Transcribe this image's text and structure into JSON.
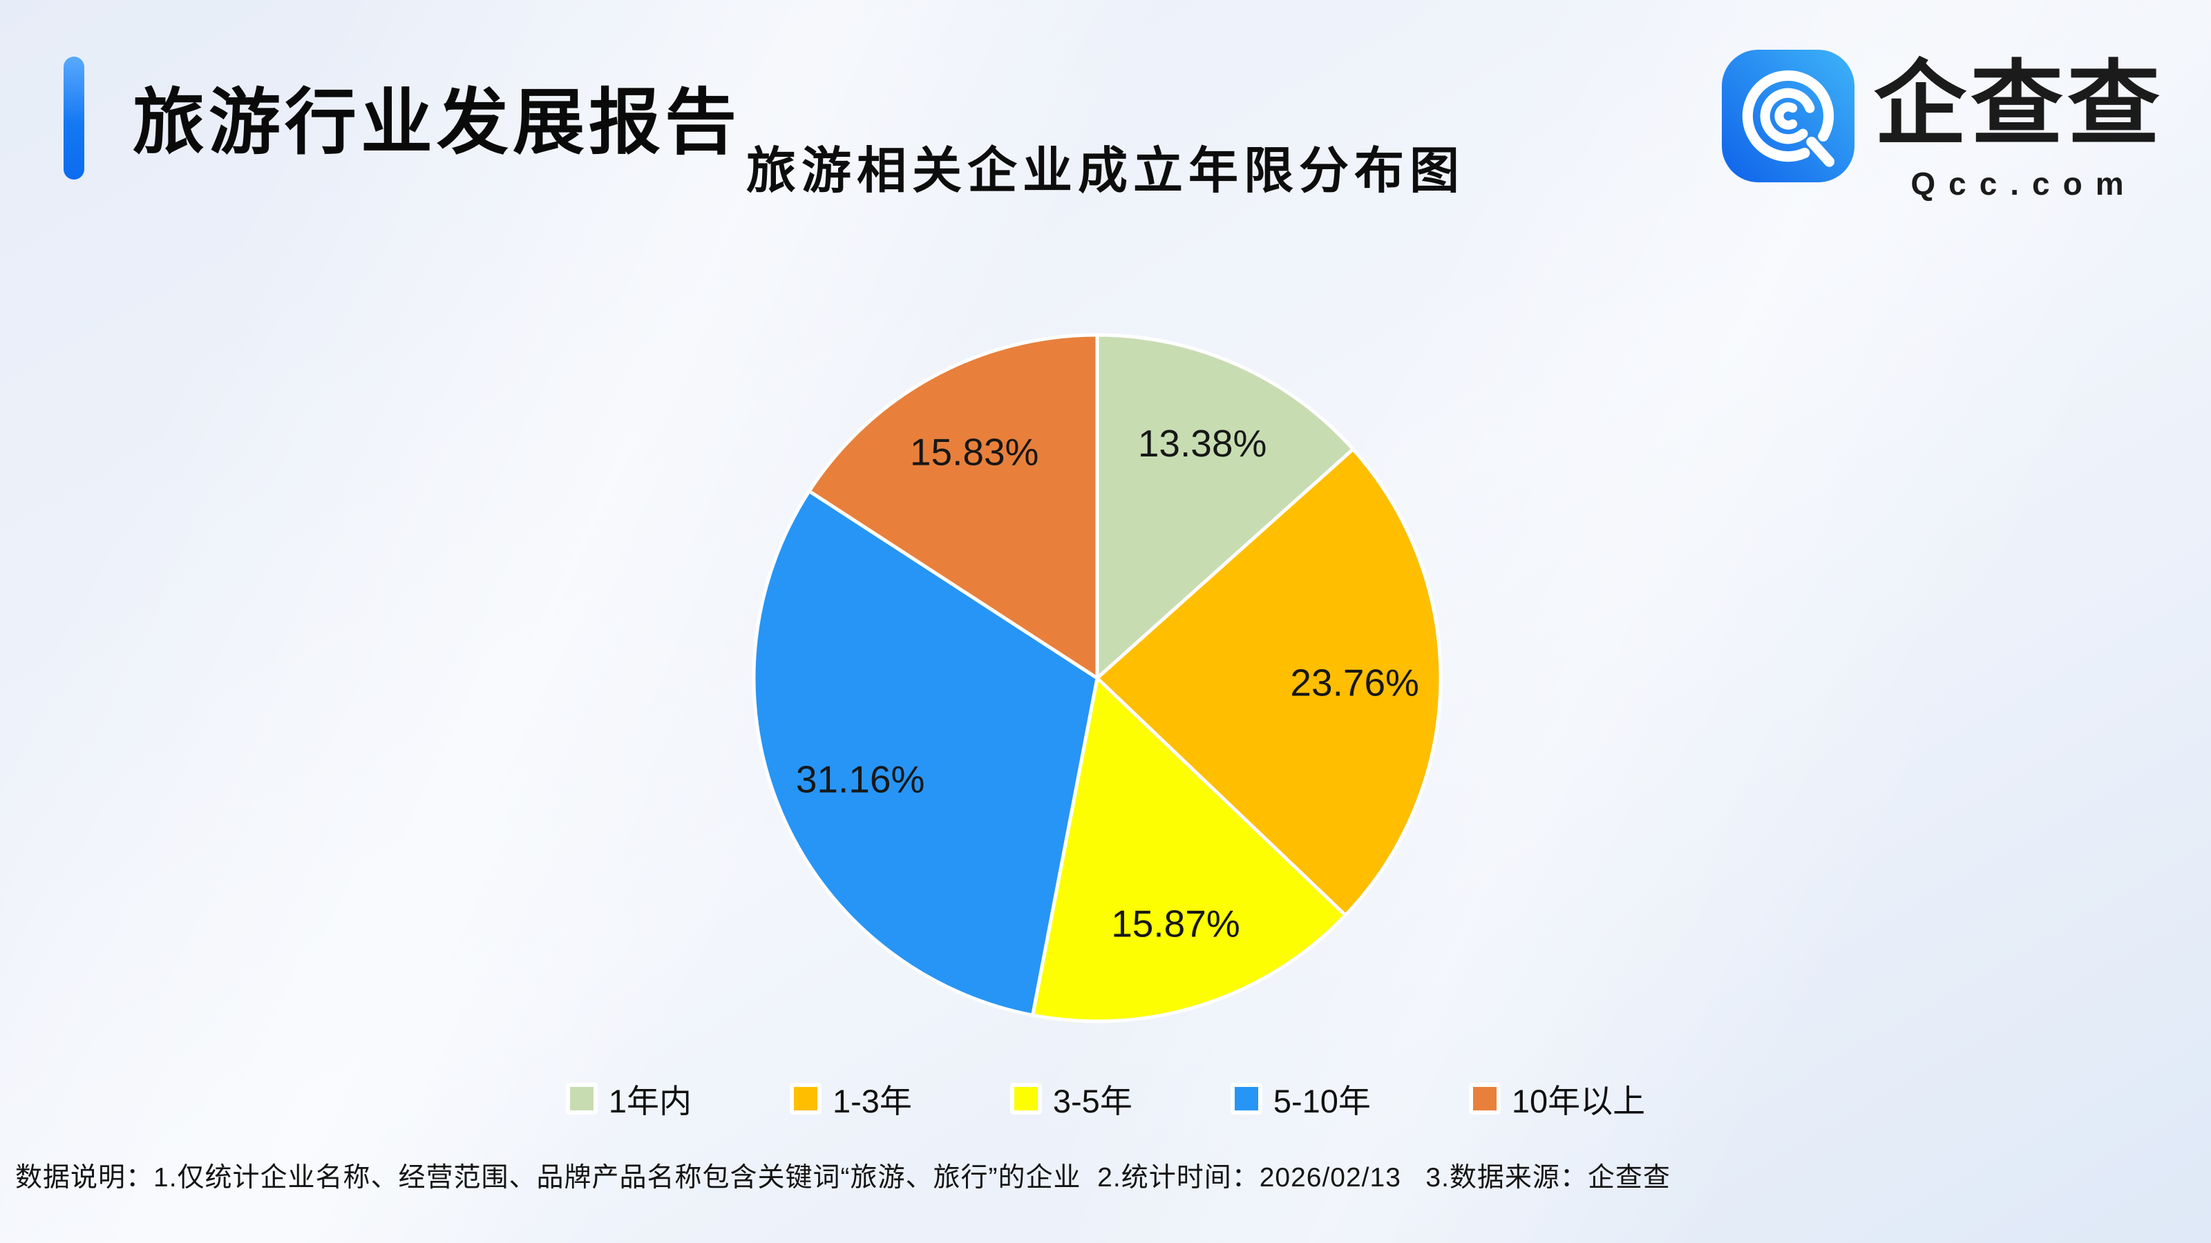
{
  "header": {
    "title": "旅游行业发展报告"
  },
  "logo": {
    "name": "企查查",
    "domain": "Qcc.com",
    "brand_blue": "#1478f2"
  },
  "chart_data": {
    "type": "pie",
    "title": "旅游相关企业成立年限分布图",
    "unit": "percent",
    "start_angle": "12-oclock",
    "direction": "clockwise",
    "labels_position": "inside",
    "legend_position": "bottom",
    "slices": [
      {
        "label": "1年内",
        "value": 13.38,
        "display": "13.38%",
        "color": "#c8dcb2"
      },
      {
        "label": "1-3年",
        "value": 23.76,
        "display": "23.76%",
        "color": "#ffbe00"
      },
      {
        "label": "3-5年",
        "value": 15.87,
        "display": "15.87%",
        "color": "#fdfe02"
      },
      {
        "label": "5-10年",
        "value": 31.16,
        "display": "31.16%",
        "color": "#2795f5"
      },
      {
        "label": "10年以上",
        "value": 15.83,
        "display": "15.83%",
        "color": "#e8803c"
      }
    ]
  },
  "footer": {
    "note": "数据说明：1.仅统计企业名称、经营范围、品牌产品名称包含关键词“旅游、旅行”的企业  2.统计时间：2026/02/13   3.数据来源：企查查"
  }
}
